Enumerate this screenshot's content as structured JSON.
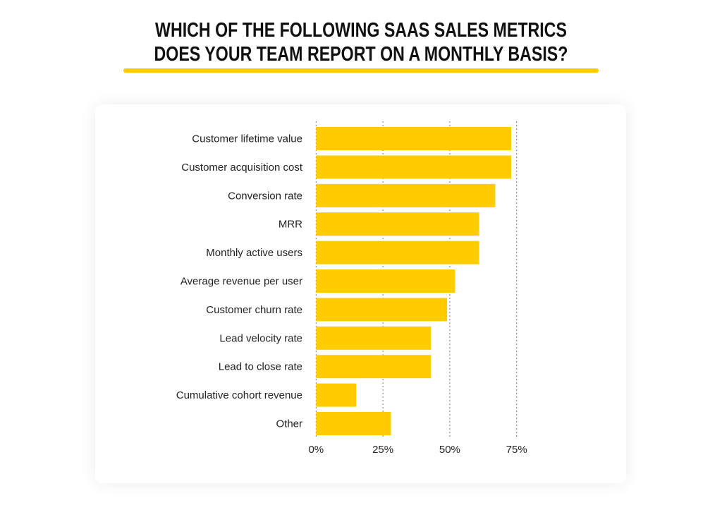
{
  "title": {
    "line1": "WHICH OF THE FOLLOWING SAAS SALES METRICS",
    "line2": "DOES YOUR TEAM REPORT ON A MONTHLY BASIS?"
  },
  "colors": {
    "bar": "#FFCC00",
    "accent": "#FFCC00",
    "text": "#111111",
    "grid": "#777777"
  },
  "chart_data": {
    "type": "bar",
    "orientation": "horizontal",
    "title": "WHICH OF THE FOLLOWING SAAS SALES METRICS DOES YOUR TEAM REPORT ON A MONTHLY BASIS?",
    "categories": [
      "Customer lifetime value",
      "Customer acquisition cost",
      "Conversion rate",
      "MRR",
      "Monthly active users",
      "Average revenue per user",
      "Customer churn rate",
      "Lead velocity rate",
      "Lead to close rate",
      "Cumulative cohort revenue",
      "Other"
    ],
    "values": [
      73,
      73,
      67,
      61,
      61,
      52,
      49,
      43,
      43,
      15,
      28
    ],
    "unit": "%",
    "xlim": [
      0,
      75
    ],
    "xticks": [
      0,
      25,
      50,
      75
    ],
    "xtick_labels": [
      "0%",
      "25%",
      "50%",
      "75%"
    ],
    "grid": "vertical dotted",
    "legend": "none"
  }
}
